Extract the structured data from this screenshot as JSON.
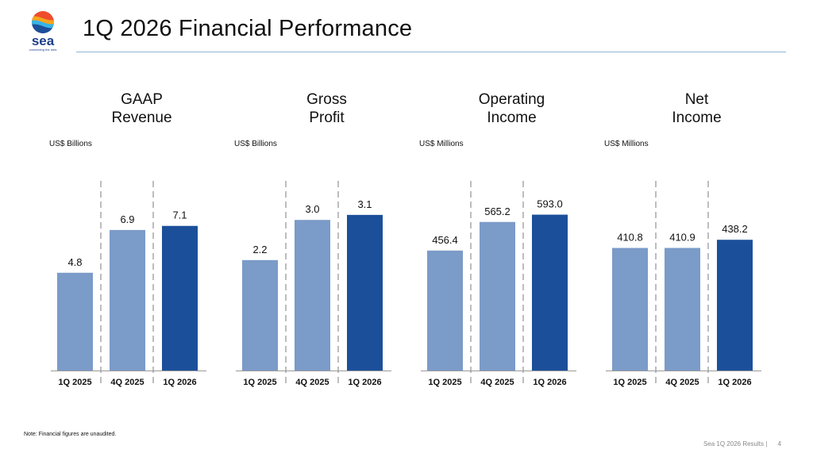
{
  "header": {
    "title": "1Q 2026 Financial Performance",
    "logo_text": "sea",
    "logo_tagline": "connecting the dots"
  },
  "footer": {
    "note": "Note: Financial figures are unaudited.",
    "deck_label": "Sea 1Q 2026 Results |",
    "page_number": "4"
  },
  "colors": {
    "light_bar": "#7b9bc8",
    "dark_bar": "#1c4f9a",
    "divider": "#bdbdbd",
    "baseline": "#9a9a9a",
    "rule": "#8fb3d6"
  },
  "chart_data": [
    {
      "type": "bar",
      "title": "GAAP\nRevenue",
      "ylabel": "US$ Billions",
      "categories": [
        "1Q 2025",
        "4Q 2025",
        "1Q 2026"
      ],
      "values": [
        4.8,
        6.9,
        7.1
      ],
      "labels": [
        "4.8",
        "6.9",
        "7.1"
      ],
      "highlight_index": 2,
      "ylim": [
        0,
        10.4
      ]
    },
    {
      "type": "bar",
      "title": "Gross\nProfit",
      "ylabel": "US$ Billions",
      "categories": [
        "1Q 2025",
        "4Q 2025",
        "1Q 2026"
      ],
      "values": [
        2.2,
        3.0,
        3.1
      ],
      "labels": [
        "2.2",
        "3.0",
        "3.1"
      ],
      "highlight_index": 2,
      "ylim": [
        0,
        4.22
      ]
    },
    {
      "type": "bar",
      "title": "Operating\nIncome",
      "ylabel": "US$ Millions",
      "categories": [
        "1Q 2025",
        "4Q 2025",
        "1Q 2026"
      ],
      "values": [
        456.4,
        565.2,
        593.0
      ],
      "labels": [
        "456.4",
        "565.2",
        "593.0"
      ],
      "highlight_index": 2,
      "ylim": [
        0,
        806
      ]
    },
    {
      "type": "bar",
      "title": "Net\nIncome",
      "ylabel": "US$ Millions",
      "categories": [
        "1Q 2025",
        "4Q 2025",
        "1Q 2026"
      ],
      "values": [
        410.8,
        410.9,
        438.2
      ],
      "labels": [
        "410.8",
        "410.9",
        "438.2"
      ],
      "highlight_index": 2,
      "ylim": [
        0,
        710
      ]
    }
  ]
}
